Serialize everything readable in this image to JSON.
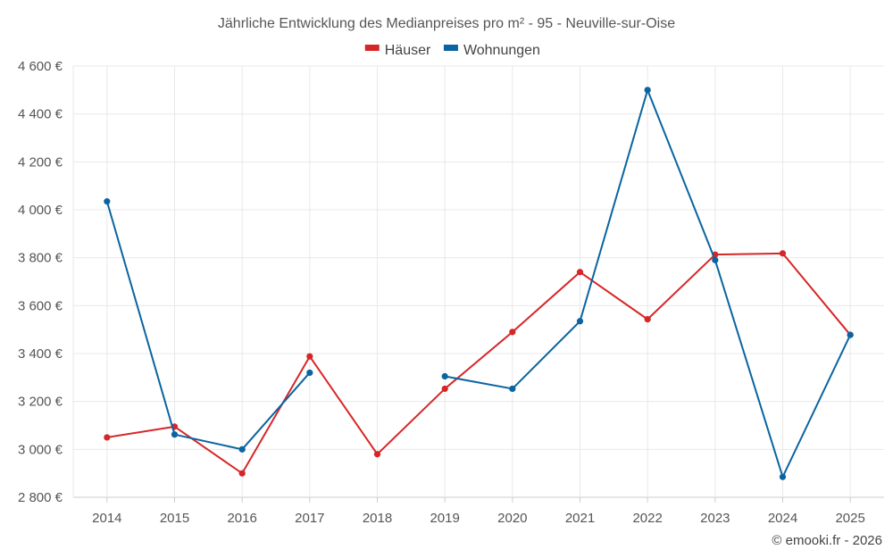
{
  "chart_data": {
    "type": "line",
    "title": "Jährliche Entwicklung des Medianpreises pro m² - 95 - Neuville-sur-Oise",
    "x": [
      "2014",
      "2015",
      "2016",
      "2017",
      "2018",
      "2019",
      "2020",
      "2021",
      "2022",
      "2023",
      "2024",
      "2025"
    ],
    "series": [
      {
        "name": "Häuser",
        "color": "#d62728",
        "values": [
          3050,
          3095,
          2900,
          3388,
          2980,
          3253,
          3490,
          3740,
          3543,
          3813,
          3818,
          3478
        ]
      },
      {
        "name": "Wohnungen",
        "color": "#0a64a0",
        "values": [
          4035,
          3062,
          3000,
          3320,
          null,
          3305,
          3253,
          3535,
          4500,
          3790,
          2885,
          3478
        ]
      }
    ],
    "ylim": [
      2800,
      4600
    ],
    "yticks": [
      2800,
      3000,
      3200,
      3400,
      3600,
      3800,
      4000,
      4200,
      4400,
      4600
    ],
    "ytick_labels": [
      "2 800 €",
      "3 000 €",
      "3 200 €",
      "3 400 €",
      "3 600 €",
      "3 800 €",
      "4 000 €",
      "4 200 €",
      "4 400 €",
      "4 600 €"
    ],
    "xlabel": "",
    "ylabel": "",
    "grid": true,
    "legend_position": "top-center"
  },
  "credit": "© emooki.fr - 2026"
}
